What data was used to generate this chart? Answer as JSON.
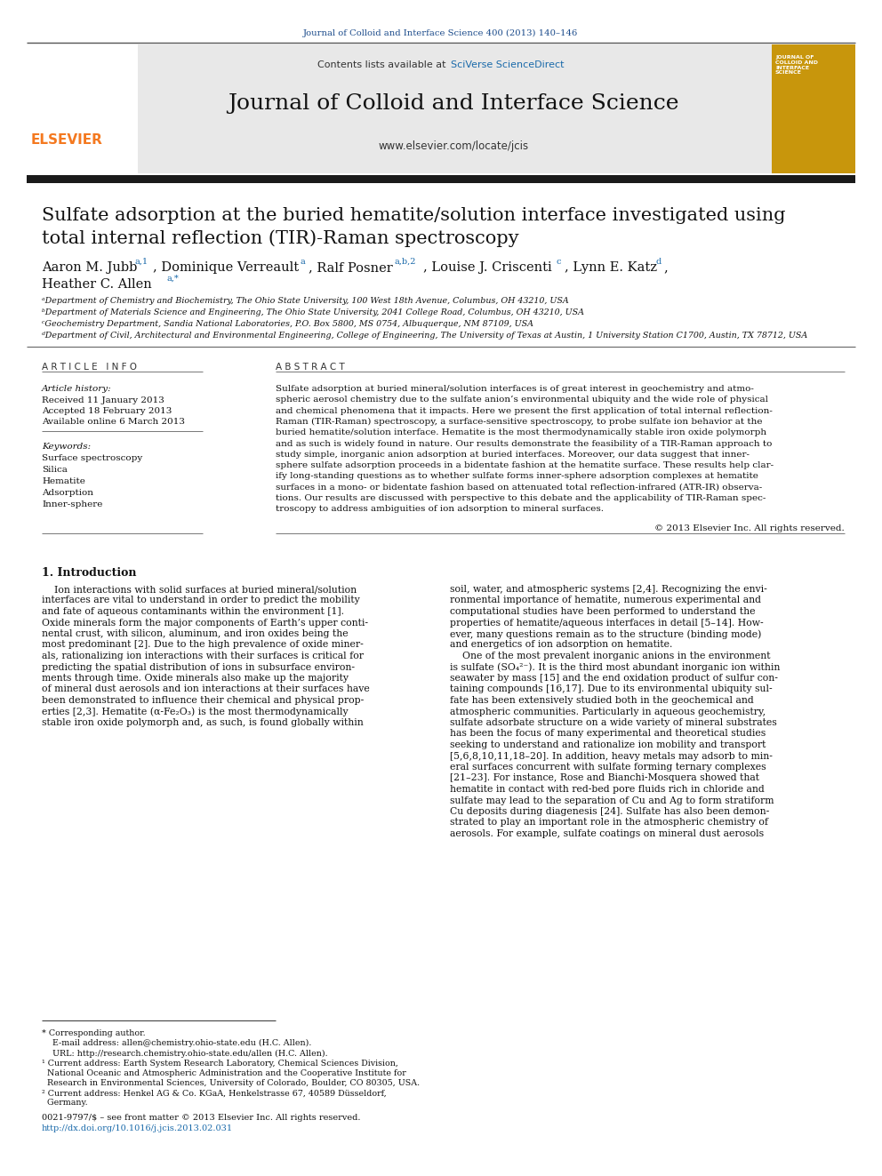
{
  "journal_ref": "Journal of Colloid and Interface Science 400 (2013) 140–146",
  "journal_ref_color": "#1a4a8a",
  "header_bg": "#e8e8e8",
  "sciverse_color": "#1a6aaa",
  "journal_title": "Journal of Colloid and Interface Science",
  "journal_url": "www.elsevier.com/locate/jcis",
  "elsevier_color": "#f47920",
  "affil_a": "ᵃDepartment of Chemistry and Biochemistry, The Ohio State University, 100 West 18th Avenue, Columbus, OH 43210, USA",
  "affil_b": "ᵇDepartment of Materials Science and Engineering, The Ohio State University, 2041 College Road, Columbus, OH 43210, USA",
  "affil_c": "ᶜGeochemistry Department, Sandia National Laboratories, P.O. Box 5800, MS 0754, Albuquerque, NM 87109, USA",
  "affil_d": "ᵈDepartment of Civil, Architectural and Environmental Engineering, College of Engineering, The University of Texas at Austin, 1 University Station C1700, Austin, TX 78712, USA",
  "article_info_header": "A R T I C L E   I N F O",
  "abstract_header": "A B S T R A C T",
  "history_label": "Article history:",
  "received": "Received 11 January 2013",
  "accepted": "Accepted 18 February 2013",
  "available": "Available online 6 March 2013",
  "keywords": [
    "Surface spectroscopy",
    "Silica",
    "Hematite",
    "Adsorption",
    "Inner-sphere"
  ],
  "copyright": "© 2013 Elsevier Inc. All rights reserved.",
  "intro_header": "1. Introduction",
  "issn_line": "0021-9797/$ – see front matter © 2013 Elsevier Inc. All rights reserved.",
  "doi_line": "http://dx.doi.org/10.1016/j.jcis.2013.02.031",
  "doi_color": "#1a6aaa",
  "background_color": "#ffffff",
  "header_bar_color": "#1a1a1a",
  "link_color": "#1a6aaa"
}
